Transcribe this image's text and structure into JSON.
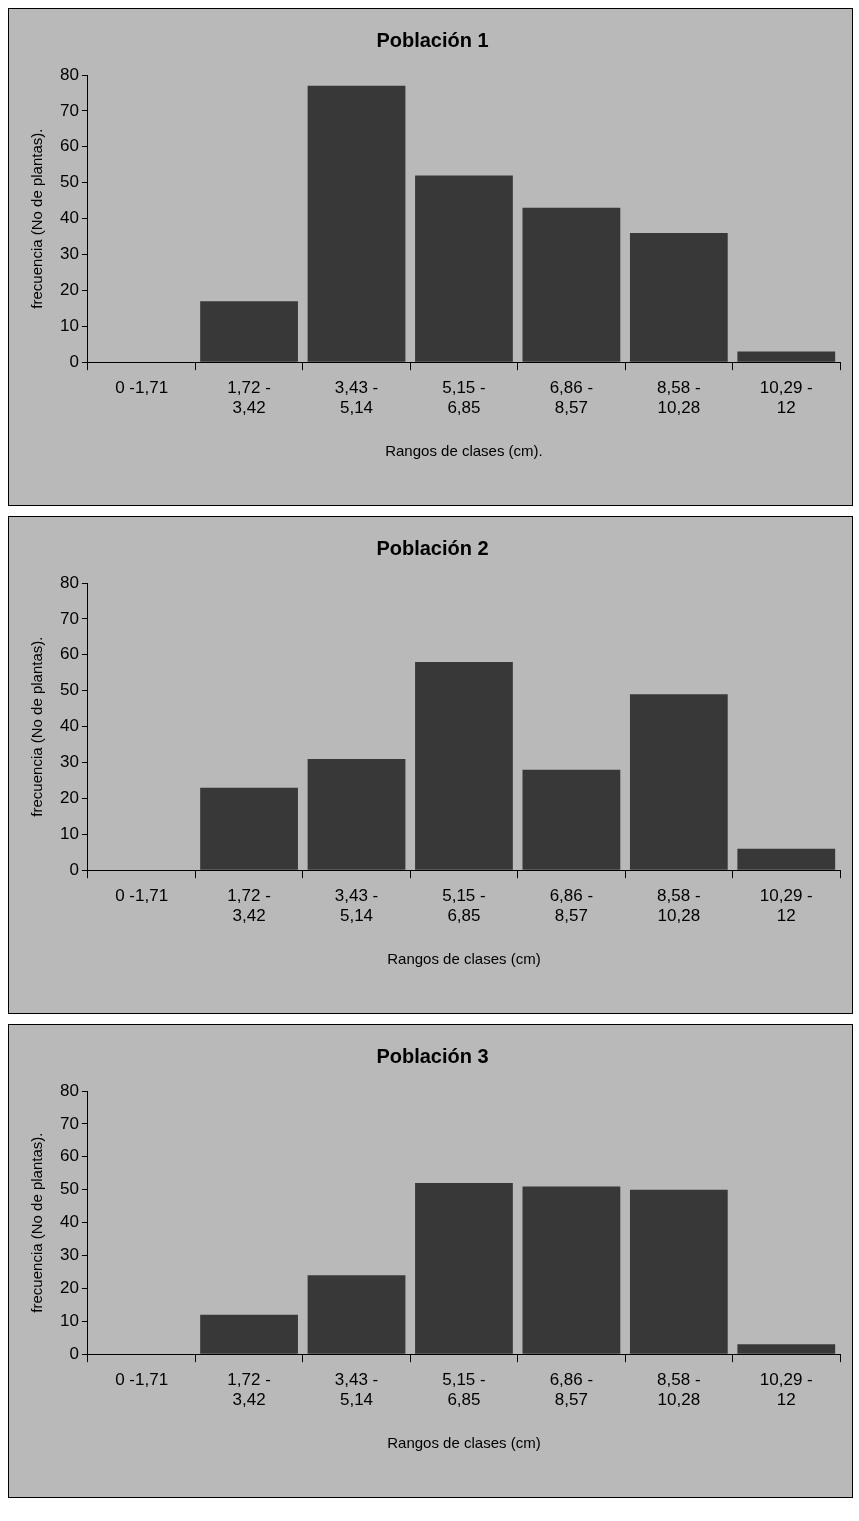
{
  "chart_data": [
    {
      "type": "bar",
      "title": "Población 1",
      "xlabel": "Rangos de clases (cm).",
      "ylabel": "frecuencia (No de plantas).",
      "categories": [
        "0 -1,71",
        "1,72 - 3,42",
        "3,43 - 5,14",
        "5,15 - 6,85",
        "6,86 - 8,57",
        "8,58 - 10,28",
        "10,29 - 12"
      ],
      "values": [
        0,
        17,
        77,
        52,
        43,
        36,
        3
      ],
      "color": "#383838",
      "ylim": [
        0,
        80
      ],
      "yticks": [
        0,
        10,
        20,
        30,
        40,
        50,
        60,
        70,
        80
      ],
      "grid": false,
      "legend": false
    },
    {
      "type": "bar",
      "title": "Población 2",
      "xlabel": "Rangos de clases (cm)",
      "ylabel": "frecuencia (No de plantas).",
      "categories": [
        "0 -1,71",
        "1,72 - 3,42",
        "3,43 - 5,14",
        "5,15 - 6,85",
        "6,86 - 8,57",
        "8,58 - 10,28",
        "10,29 - 12"
      ],
      "values": [
        0,
        23,
        31,
        58,
        28,
        49,
        6
      ],
      "color": "#383838",
      "ylim": [
        0,
        80
      ],
      "yticks": [
        0,
        10,
        20,
        30,
        40,
        50,
        60,
        70,
        80
      ],
      "grid": false,
      "legend": false
    },
    {
      "type": "bar",
      "title": "Población 3",
      "xlabel": "Rangos de clases (cm)",
      "ylabel": "frecuencia (No de plantas).",
      "categories": [
        "0 -1,71",
        "1,72 - 3,42",
        "3,43 - 5,14",
        "5,15 - 6,85",
        "6,86 - 8,57",
        "8,58 - 10,28",
        "10,29 - 12"
      ],
      "values": [
        0,
        12,
        24,
        52,
        51,
        50,
        3
      ],
      "color": "#383838",
      "ylim": [
        0,
        80
      ],
      "yticks": [
        0,
        10,
        20,
        30,
        40,
        50,
        60,
        70,
        80
      ],
      "grid": false,
      "legend": false
    }
  ]
}
